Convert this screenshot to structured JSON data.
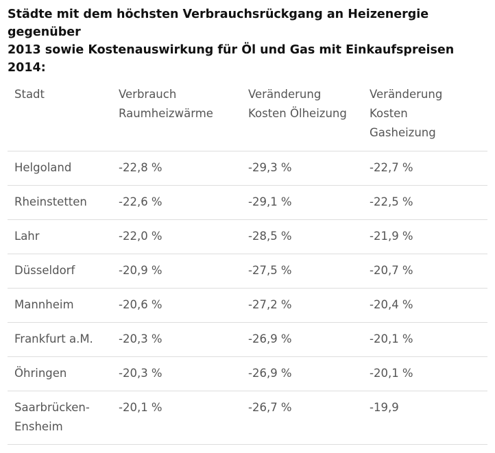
{
  "heading": {
    "line1": "Städte mit dem höchsten Verbrauchsrückgang an Heizenergie gegenüber",
    "line2": "2013 sowie Kostenauswirkung für Öl und Gas mit Einkaufspreisen 2014:"
  },
  "table": {
    "headers": [
      {
        "line1": "Stadt",
        "line2": "",
        "line3": ""
      },
      {
        "line1": "Verbrauch",
        "line2": "Raumheizwärme",
        "line3": ""
      },
      {
        "line1": "Veränderung",
        "line2": "Kosten Ölheizung",
        "line3": ""
      },
      {
        "line1": "Veränderung",
        "line2": "Kosten",
        "line3": "Gasheizung"
      }
    ],
    "rows": [
      {
        "city": "Helgoland",
        "city2": "",
        "raum": "-22,8 %",
        "oel": "-29,3 %",
        "gas": "-22,7 %"
      },
      {
        "city": "Rheinstetten",
        "city2": "",
        "raum": "-22,6 %",
        "oel": "-29,1 %",
        "gas": "-22,5 %"
      },
      {
        "city": "Lahr",
        "city2": "",
        "raum": "-22,0 %",
        "oel": "-28,5 %",
        "gas": "-21,9 %"
      },
      {
        "city": "Düsseldorf",
        "city2": "",
        "raum": "-20,9 %",
        "oel": "-27,5 %",
        "gas": "-20,7 %"
      },
      {
        "city": "Mannheim",
        "city2": "",
        "raum": "-20,6 %",
        "oel": "-27,2 %",
        "gas": "-20,4 %"
      },
      {
        "city": "Frankfurt a.M.",
        "city2": "",
        "raum": "-20,3 %",
        "oel": "-26,9 %",
        "gas": "-20,1 %"
      },
      {
        "city": "Öhringen",
        "city2": "",
        "raum": "-20,3 %",
        "oel": "-26,9 %",
        "gas": "-20,1 %"
      },
      {
        "city": "Saarbrücken-",
        "city2": "Ensheim",
        "raum": "-20,1 %",
        "oel": "-26,7 %",
        "gas": "-19,9"
      }
    ]
  }
}
